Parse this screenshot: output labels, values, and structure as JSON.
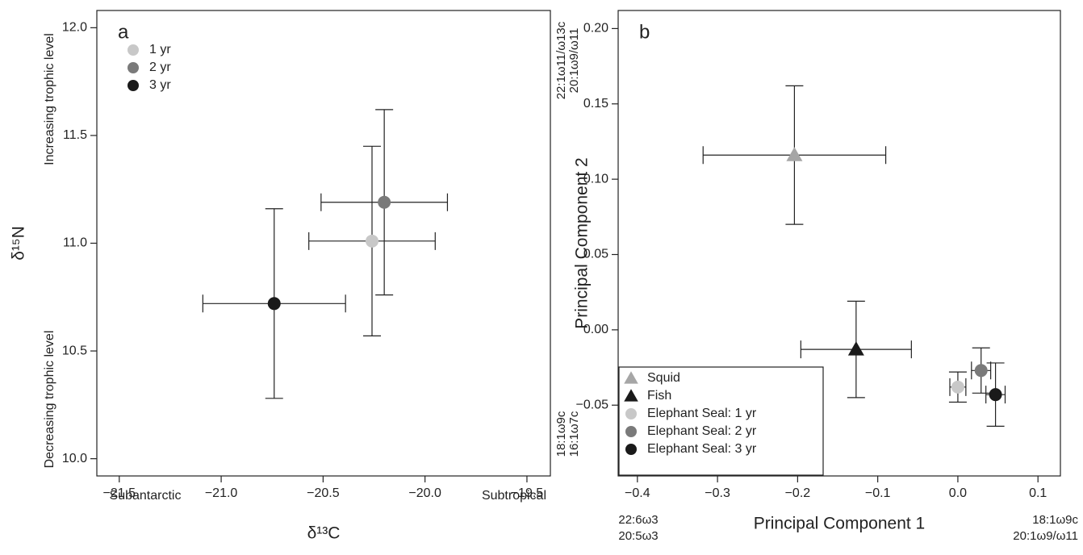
{
  "chart_data": [
    {
      "type": "scatter",
      "panel_label": "a",
      "x_label": "δ¹³C",
      "y_label": "δ¹⁵N",
      "x_annotations": {
        "low": [
          "Subantarctic"
        ],
        "high": [
          "Subtropical"
        ]
      },
      "y_annotations": {
        "low": [
          "Decreasing trophic level"
        ],
        "high": [
          "Increasing trophic level"
        ]
      },
      "xlim": [
        -21.61,
        -19.385
      ],
      "ylim": [
        9.92,
        12.08
      ],
      "xticks": [
        {
          "value": -21.5,
          "label": "−21.5"
        },
        {
          "value": -21.0,
          "label": "−21.0"
        },
        {
          "value": -20.5,
          "label": "−20.5"
        },
        {
          "value": -20.0,
          "label": "−20.0"
        },
        {
          "value": -19.5,
          "label": "−19.5"
        }
      ],
      "yticks": [
        {
          "value": 10.0,
          "label": "10.0"
        },
        10.5,
        {
          "value": 11.0,
          "label": "11.0"
        },
        11.5,
        {
          "value": 12.0,
          "label": "12.0"
        }
      ],
      "legend": "upper left",
      "series": [
        {
          "name": "1 yr",
          "color": "#c8c8c8",
          "marker": "circle",
          "x": [
            -20.26
          ],
          "y": [
            11.01
          ],
          "xerr": [
            0.31
          ],
          "yerr": [
            0.44
          ]
        },
        {
          "name": "2 yr",
          "color": "#7a7a7a",
          "marker": "circle",
          "x": [
            -20.2
          ],
          "y": [
            11.19
          ],
          "xerr": [
            0.31
          ],
          "yerr": [
            0.43
          ]
        },
        {
          "name": "3 yr",
          "color": "#1a1a1a",
          "marker": "circle",
          "x": [
            -20.74
          ],
          "y": [
            10.72
          ],
          "xerr": [
            0.35
          ],
          "yerr": [
            0.44
          ]
        }
      ]
    },
    {
      "type": "scatter",
      "panel_label": "b",
      "x_label": "Principal Component 1",
      "y_label": "Principal Component 2",
      "x_annotations": {
        "low": [
          "22:6ω3",
          "20:5ω3"
        ],
        "high": [
          "18:1ω9c",
          "20:1ω9/ω11"
        ]
      },
      "y_annotations": {
        "low": [
          "18:1ω9c",
          "16:1ω7c"
        ],
        "high": [
          "22:1ω11/ω13c",
          "20:1ω9/ω11"
        ]
      },
      "xlim": [
        -0.424,
        0.128
      ],
      "ylim": [
        -0.097,
        0.212
      ],
      "xticks": [
        {
          "value": -0.4,
          "label": "−0.4"
        },
        {
          "value": -0.3,
          "label": "−0.3"
        },
        {
          "value": -0.2,
          "label": "−0.2"
        },
        {
          "value": -0.1,
          "label": "−0.1"
        },
        {
          "value": 0.0,
          "label": "0.0"
        },
        0.1
      ],
      "yticks": [
        {
          "value": -0.05,
          "label": "−0.05"
        },
        {
          "value": 0.0,
          "label": "0.00"
        },
        0.05,
        {
          "value": 0.1,
          "label": "0.10"
        },
        0.15,
        {
          "value": 0.2,
          "label": "0.20"
        }
      ],
      "legend": "lower left",
      "series": [
        {
          "name": "Squid",
          "color": "#a6a6a6",
          "marker": "triangle",
          "x": [
            -0.204
          ],
          "y": [
            0.116
          ],
          "xerr": [
            0.114
          ],
          "yerr": [
            0.046
          ]
        },
        {
          "name": "Fish",
          "color": "#1a1a1a",
          "marker": "triangle",
          "x": [
            -0.127
          ],
          "y": [
            -0.013
          ],
          "xerr": [
            0.069
          ],
          "yerr": [
            0.032
          ]
        },
        {
          "name": "Elephant Seal: 1 yr",
          "color": "#c8c8c8",
          "marker": "circle",
          "x": [
            0.0
          ],
          "y": [
            -0.038
          ],
          "xerr": [
            0.01
          ],
          "yerr": [
            0.01
          ]
        },
        {
          "name": "Elephant Seal: 2 yr",
          "color": "#7a7a7a",
          "marker": "circle",
          "x": [
            0.029
          ],
          "y": [
            -0.027
          ],
          "xerr": [
            0.012
          ],
          "yerr": [
            0.015
          ]
        },
        {
          "name": "Elephant Seal: 3 yr",
          "color": "#1a1a1a",
          "marker": "circle",
          "x": [
            0.047
          ],
          "y": [
            -0.043
          ],
          "xerr": [
            0.012
          ],
          "yerr": [
            0.021
          ]
        }
      ]
    }
  ]
}
